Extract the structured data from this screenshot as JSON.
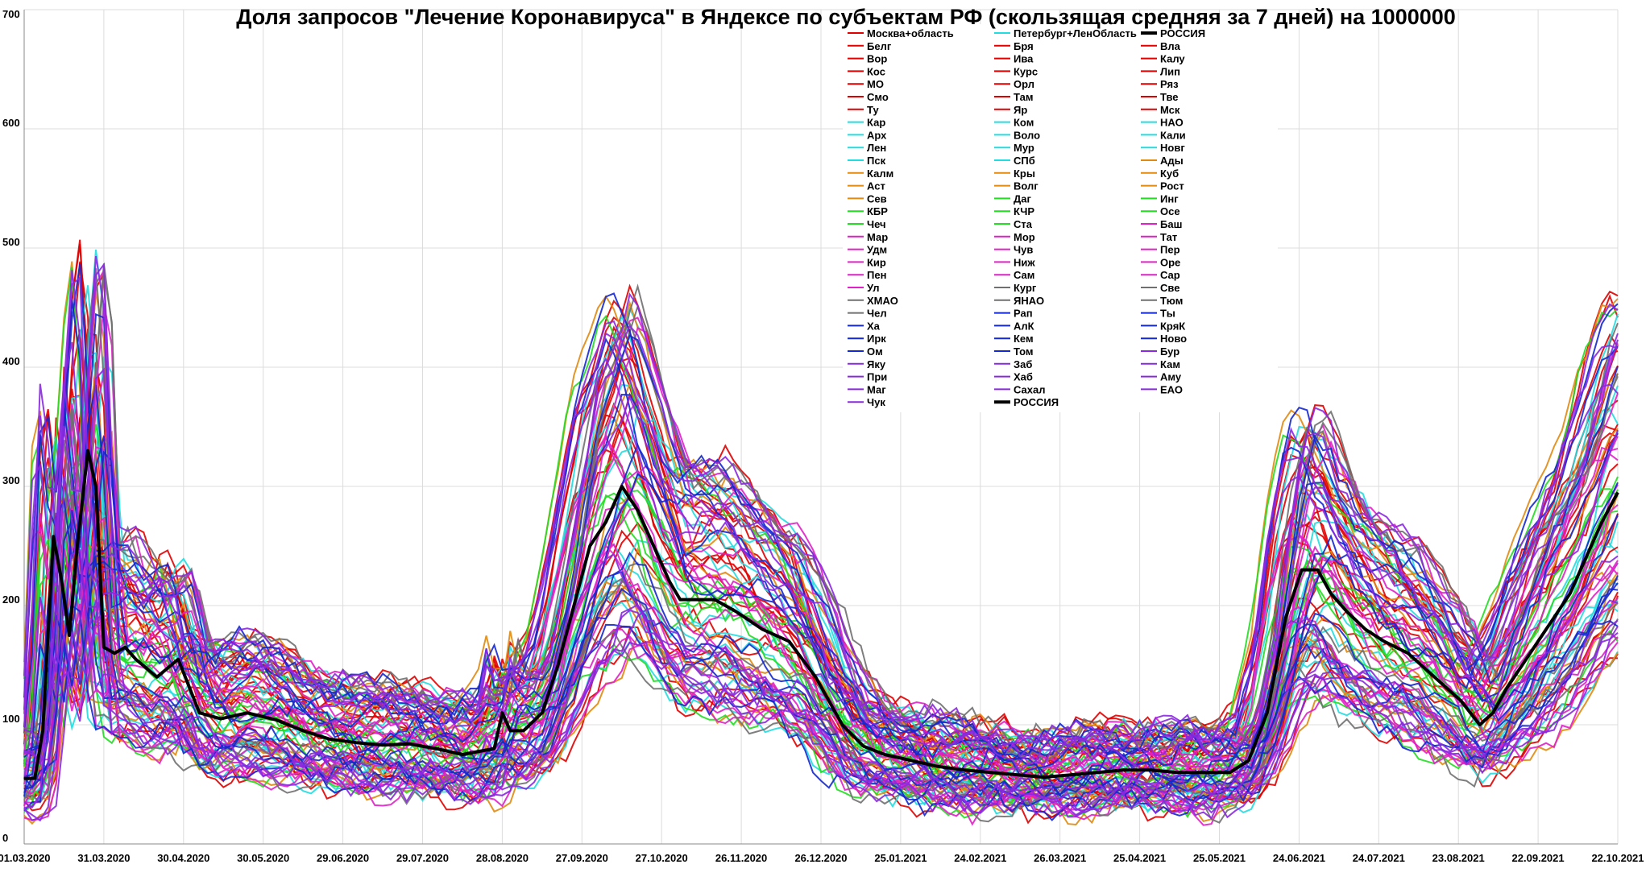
{
  "chart_data": {
    "type": "line",
    "title": "Доля запросов \"Лечение Коронавируса\" в Яндексе по субъектам РФ (скользящая средняя за 7 дней) на 1000000",
    "xlabel": "",
    "ylabel": "",
    "xlim": [
      "2020-03-01",
      "2021-10-22"
    ],
    "ylim": [
      0,
      700
    ],
    "grid": true,
    "legend_position": "top-center",
    "y_ticks": [
      0,
      100,
      200,
      300,
      400,
      500,
      600,
      700
    ],
    "x_ticks": [
      "01.03.2020",
      "31.03.2020",
      "30.04.2020",
      "30.05.2020",
      "29.06.2020",
      "29.07.2020",
      "28.08.2020",
      "27.09.2020",
      "27.10.2020",
      "26.11.2020",
      "26.12.2020",
      "25.01.2021",
      "24.02.2021",
      "26.03.2021",
      "25.04.2021",
      "25.05.2021",
      "24.06.2021",
      "24.07.2021",
      "23.08.2021",
      "22.09.2021",
      "22.10.2021"
    ],
    "x_day_offsets": [
      0,
      30,
      60,
      90,
      120,
      150,
      180,
      210,
      240,
      270,
      300,
      330,
      360,
      390,
      420,
      450,
      480,
      510,
      540,
      570,
      600
    ],
    "reference_series": {
      "name": "РОССИЯ",
      "color": "#000000",
      "x": [
        "01.03.2020",
        "05.03.2020",
        "08.03.2020",
        "12.03.2020",
        "15.03.2020",
        "18.03.2020",
        "21.03.2020",
        "25.03.2020",
        "28.03.2020",
        "31.03.2020",
        "04.04.2020",
        "08.04.2020",
        "12.04.2020",
        "20.04.2020",
        "28.04.2020",
        "06.05.2020",
        "14.05.2020",
        "24.05.2020",
        "04.06.2020",
        "14.06.2020",
        "24.06.2020",
        "04.07.2020",
        "14.07.2020",
        "24.07.2020",
        "03.08.2020",
        "13.08.2020",
        "20.08.2020",
        "25.08.2020",
        "28.08.2020",
        "31.08.2020",
        "05.09.2020",
        "12.09.2020",
        "18.09.2020",
        "24.09.2020",
        "30.09.2020",
        "06.10.2020",
        "12.10.2020",
        "18.10.2020",
        "24.10.2020",
        "30.10.2020",
        "03.11.2020",
        "09.11.2020",
        "16.11.2020",
        "24.11.2020",
        "04.12.2020",
        "14.12.2020",
        "24.12.2020",
        "03.01.2021",
        "11.01.2021",
        "19.01.2021",
        "29.01.2021",
        "08.02.2021",
        "18.02.2021",
        "28.02.2021",
        "10.03.2021",
        "20.03.2021",
        "30.03.2021",
        "09.04.2021",
        "19.04.2021",
        "29.04.2021",
        "09.05.2021",
        "19.05.2021",
        "29.05.2021",
        "05.06.2021",
        "12.06.2021",
        "19.06.2021",
        "25.06.2021",
        "01.07.2021",
        "06.07.2021",
        "12.07.2021",
        "19.07.2021",
        "26.07.2021",
        "04.08.2021",
        "14.08.2021",
        "24.08.2021",
        "31.08.2021",
        "05.09.2021",
        "10.09.2021",
        "16.09.2021",
        "22.09.2021",
        "28.09.2021",
        "04.10.2021",
        "10.10.2021",
        "16.10.2021",
        "22.10.2021"
      ],
      "values": [
        55,
        55,
        95,
        258,
        222,
        175,
        250,
        330,
        300,
        165,
        160,
        165,
        155,
        140,
        155,
        110,
        105,
        110,
        104,
        95,
        88,
        85,
        83,
        84,
        80,
        75,
        78,
        80,
        110,
        95,
        95,
        110,
        150,
        200,
        250,
        270,
        300,
        280,
        250,
        220,
        205,
        205,
        205,
        195,
        180,
        170,
        140,
        100,
        82,
        75,
        70,
        65,
        62,
        60,
        58,
        56,
        58,
        60,
        62,
        62,
        60,
        60,
        60,
        70,
        110,
        190,
        230,
        230,
        210,
        195,
        180,
        170,
        160,
        140,
        120,
        100,
        110,
        130,
        150,
        170,
        190,
        210,
        240,
        270,
        295
      ]
    },
    "legend": [
      {
        "name": "Москва+область",
        "color": "#e00000"
      },
      {
        "name": "Петербург+ЛенОбласть",
        "color": "#22dde0"
      },
      {
        "name": "РОССИЯ",
        "color": "#000000"
      },
      {
        "name": "Белг",
        "color": "#e00000"
      },
      {
        "name": "Бря",
        "color": "#e00000"
      },
      {
        "name": "Вла",
        "color": "#e00000"
      },
      {
        "name": "Вор",
        "color": "#e00000"
      },
      {
        "name": "Ива",
        "color": "#e00000"
      },
      {
        "name": "Калу",
        "color": "#e00000"
      },
      {
        "name": "Кос",
        "color": "#e00000"
      },
      {
        "name": "Курс",
        "color": "#e00000"
      },
      {
        "name": "Лип",
        "color": "#e00000"
      },
      {
        "name": "МО",
        "color": "#e00000"
      },
      {
        "name": "Орл",
        "color": "#e00000"
      },
      {
        "name": "Ряз",
        "color": "#e00000"
      },
      {
        "name": "Смо",
        "color": "#e00000"
      },
      {
        "name": "Там",
        "color": "#e00000"
      },
      {
        "name": "Тве",
        "color": "#e00000"
      },
      {
        "name": "Ту",
        "color": "#e00000"
      },
      {
        "name": "Яр",
        "color": "#e00000"
      },
      {
        "name": "Мск",
        "color": "#e00000"
      },
      {
        "name": "Кар",
        "color": "#22dde0"
      },
      {
        "name": "Ком",
        "color": "#22dde0"
      },
      {
        "name": "НАО",
        "color": "#22dde0"
      },
      {
        "name": "Арх",
        "color": "#22dde0"
      },
      {
        "name": "Воло",
        "color": "#22dde0"
      },
      {
        "name": "Кали",
        "color": "#22dde0"
      },
      {
        "name": "Лен",
        "color": "#22dde0"
      },
      {
        "name": "Мур",
        "color": "#22dde0"
      },
      {
        "name": "Новг",
        "color": "#22dde0"
      },
      {
        "name": "Пск",
        "color": "#22dde0"
      },
      {
        "name": "СПб",
        "color": "#22dde0"
      },
      {
        "name": "Ады",
        "color": "#e08a10"
      },
      {
        "name": "Калм",
        "color": "#e08a10"
      },
      {
        "name": "Кры",
        "color": "#e08a10"
      },
      {
        "name": "Куб",
        "color": "#e08a10"
      },
      {
        "name": "Аст",
        "color": "#e08a10"
      },
      {
        "name": "Волг",
        "color": "#e08a10"
      },
      {
        "name": "Рост",
        "color": "#e08a10"
      },
      {
        "name": "Сев",
        "color": "#e08a10"
      },
      {
        "name": "Даг",
        "color": "#22dd22"
      },
      {
        "name": "Инг",
        "color": "#22dd22"
      },
      {
        "name": "КБР",
        "color": "#22dd22"
      },
      {
        "name": "КЧР",
        "color": "#22dd22"
      },
      {
        "name": "Осе",
        "color": "#22dd22"
      },
      {
        "name": "Чеч",
        "color": "#22dd22"
      },
      {
        "name": "Ста",
        "color": "#22dd22"
      },
      {
        "name": "Баш",
        "color": "#e020c8"
      },
      {
        "name": "Мар",
        "color": "#e020c8"
      },
      {
        "name": "Мор",
        "color": "#e020c8"
      },
      {
        "name": "Тат",
        "color": "#e020c8"
      },
      {
        "name": "Удм",
        "color": "#e020c8"
      },
      {
        "name": "Чув",
        "color": "#e020c8"
      },
      {
        "name": "Пер",
        "color": "#e020c8"
      },
      {
        "name": "Кир",
        "color": "#e020c8"
      },
      {
        "name": "Ниж",
        "color": "#e020c8"
      },
      {
        "name": "Оре",
        "color": "#e020c8"
      },
      {
        "name": "Пен",
        "color": "#e020c8"
      },
      {
        "name": "Сам",
        "color": "#e020c8"
      },
      {
        "name": "Сар",
        "color": "#e020c8"
      },
      {
        "name": "Ул",
        "color": "#e020c8"
      },
      {
        "name": "Кург",
        "color": "#707070"
      },
      {
        "name": "Све",
        "color": "#707070"
      },
      {
        "name": "ХМАО",
        "color": "#707070"
      },
      {
        "name": "ЯНАО",
        "color": "#707070"
      },
      {
        "name": "Тюм",
        "color": "#707070"
      },
      {
        "name": "Чел",
        "color": "#707070"
      },
      {
        "name": "Рап",
        "color": "#1428d0"
      },
      {
        "name": "Ты",
        "color": "#1428d0"
      },
      {
        "name": "Ха",
        "color": "#1428d0"
      },
      {
        "name": "АлК",
        "color": "#1428d0"
      },
      {
        "name": "КряК",
        "color": "#1428d0"
      },
      {
        "name": "Ирк",
        "color": "#1428d0"
      },
      {
        "name": "Кем",
        "color": "#1428d0"
      },
      {
        "name": "Ново",
        "color": "#1428d0"
      },
      {
        "name": "Ом",
        "color": "#1428d0"
      },
      {
        "name": "Том",
        "color": "#1428d0"
      },
      {
        "name": "Бур",
        "color": "#8a28e0"
      },
      {
        "name": "Яку",
        "color": "#8a28e0"
      },
      {
        "name": "Заб",
        "color": "#8a28e0"
      },
      {
        "name": "Кам",
        "color": "#8a28e0"
      },
      {
        "name": "При",
        "color": "#8a28e0"
      },
      {
        "name": "Хаб",
        "color": "#8a28e0"
      },
      {
        "name": "Аму",
        "color": "#8a28e0"
      },
      {
        "name": "Маг",
        "color": "#8a28e0"
      },
      {
        "name": "Сахал",
        "color": "#8a28e0"
      },
      {
        "name": "ЕАО",
        "color": "#8a28e0"
      },
      {
        "name": "Чук",
        "color": "#8a28e0"
      },
      {
        "name": "РОССИЯ",
        "color": "#000000"
      }
    ]
  }
}
